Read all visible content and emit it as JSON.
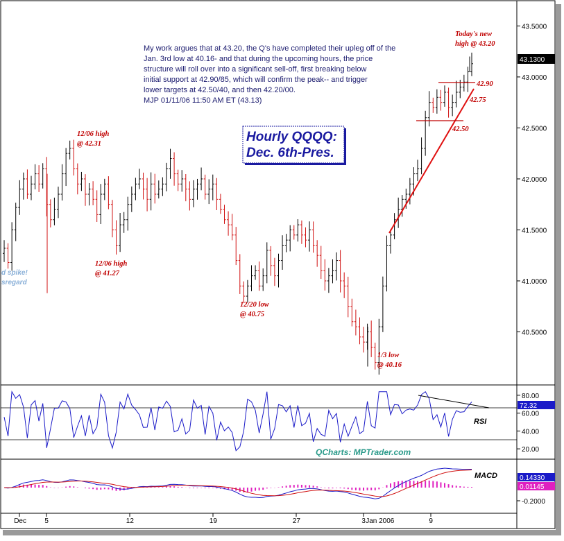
{
  "chart_data": {
    "type": "candlestick",
    "title": "Hourly QQQQ:",
    "subtitle": "Dec. 6th-Pres.",
    "commentary": [
      "My work argues that at 43.20, the Q's have completed their upleg off of the",
      "Jan. 3rd low at 40.16- and that during the upcoming hours, the price",
      "structure will roll over into a significant sell-off, first breaking below",
      "initial support at 42.90/85, which will confirm the peak-- and trigger",
      "lower targets at 42.50/40, and then 42.20/00.",
      "MJP  01/11/06 11:50 AM ET  (43.13)"
    ],
    "price_panel": {
      "ylim": [
        40.0,
        43.7
      ],
      "y_ticks": [
        "43.5000",
        "43.0000",
        "42.5000",
        "42.0000",
        "41.5000",
        "41.0000",
        "40.5000"
      ],
      "last_price": "43.1300",
      "series_close": [
        41.32,
        41.18,
        41.5,
        41.72,
        41.9,
        42.0,
        41.85,
        41.95,
        42.05,
        41.95,
        42.1,
        41.75,
        41.6,
        41.7,
        41.85,
        42.05,
        42.25,
        42.3,
        42.1,
        41.95,
        42.0,
        41.85,
        41.9,
        41.8,
        41.65,
        41.85,
        41.95,
        41.75,
        41.5,
        41.35,
        41.55,
        41.6,
        41.75,
        41.85,
        41.95,
        42.0,
        41.9,
        41.8,
        41.95,
        41.85,
        41.9,
        41.95,
        42.1,
        42.2,
        42.05,
        41.95,
        42.0,
        41.9,
        41.8,
        41.9,
        41.95,
        42.0,
        41.85,
        41.9,
        41.95,
        41.8,
        41.7,
        41.6,
        41.55,
        41.45,
        41.2,
        40.95,
        40.85,
        40.95,
        41.05,
        41.1,
        40.95,
        41.05,
        41.3,
        41.15,
        41.05,
        41.2,
        41.35,
        41.4,
        41.5,
        41.45,
        41.55,
        41.45,
        41.4,
        41.5,
        41.35,
        41.25,
        41.1,
        41.0,
        41.05,
        41.1,
        41.2,
        41.0,
        40.95,
        40.75,
        40.6,
        40.55,
        40.45,
        40.4,
        40.5,
        40.35,
        40.2,
        40.55,
        40.95,
        41.35,
        41.45,
        41.6,
        41.7,
        41.8,
        41.85,
        41.95,
        42.05,
        42.1,
        42.3,
        42.6,
        42.75,
        42.7,
        42.8,
        42.75,
        42.85,
        42.7,
        42.75,
        42.85,
        42.9,
        42.95,
        43.05,
        43.13
      ],
      "annotations": [
        {
          "text1": "12/06 high",
          "text2": "@ 42.31"
        },
        {
          "text1": "12/06 high",
          "text2": "@ 41.27"
        },
        {
          "text1": "12/20 low",
          "text2": "@ 40.75"
        },
        {
          "text1": "1/3 low",
          "text2": "@ 40.16"
        },
        {
          "text1": "Today's new",
          "text2": "high @ 43.20"
        }
      ],
      "levels": [
        {
          "label": "42.90",
          "value": 42.9
        },
        {
          "label": "42.75",
          "value": 42.75
        },
        {
          "label": "42.50",
          "value": 42.5
        }
      ],
      "left_note": [
        "d spike!",
        "sregard"
      ]
    },
    "rsi_panel": {
      "label": "RSI",
      "ylim": [
        10,
        90
      ],
      "y_ticks": [
        "80.00",
        "60.00",
        "40.00",
        "20.00"
      ],
      "last_value": "72.32"
    },
    "macd_panel": {
      "label": "MACD",
      "y_ticks": [
        "-0.2000"
      ],
      "macd_value": "0.14330",
      "hist_value": "0.01145"
    },
    "x_ticks": [
      "Dec",
      "5",
      "12",
      "19",
      "27",
      "3",
      "Jan 2006",
      "9"
    ],
    "watermark": "QCharts: MPTrader.com"
  }
}
